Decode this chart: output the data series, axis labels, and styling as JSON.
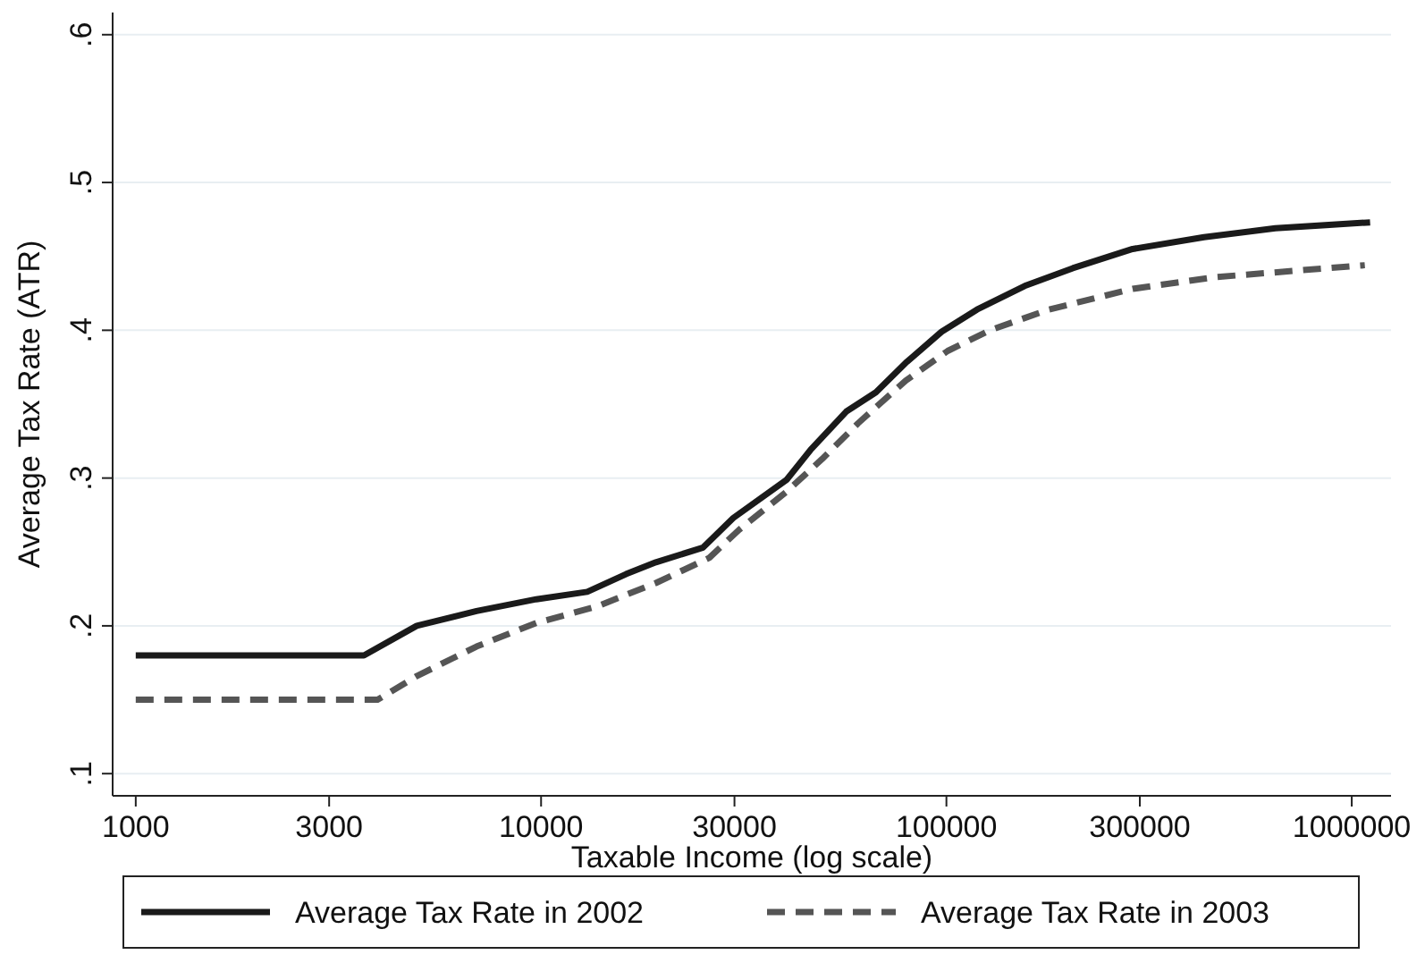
{
  "chart_data": {
    "type": "line",
    "xlabel": "Taxable Income (log scale)",
    "ylabel": "Average Tax Rate (ATR)",
    "log": "x",
    "xlim": [
      877,
      1250000
    ],
    "ylim": [
      0.085,
      0.615
    ],
    "xticks": [
      1000,
      3000,
      10000,
      30000,
      100000,
      300000,
      1000000
    ],
    "yticks": [
      {
        "value": 0.1,
        "label": ".1"
      },
      {
        "value": 0.2,
        "label": ".2"
      },
      {
        "value": 0.3,
        "label": ".3"
      },
      {
        "value": 0.4,
        "label": ".4"
      },
      {
        "value": 0.5,
        "label": ".5"
      },
      {
        "value": 0.6,
        "label": ".6"
      }
    ],
    "grid": "y",
    "legend": "bottom",
    "series": [
      {
        "name": "Average Tax Rate in 2002",
        "color": "#1a1a1a",
        "line_style": "solid",
        "x": [
          1000,
          3656,
          4935,
          6930,
          9730,
          13000,
          16200,
          19200,
          25100,
          29800,
          40400,
          46200,
          56600,
          67000,
          79400,
          97300,
          119000,
          156000,
          205000,
          288000,
          432000,
          648000,
          1110000
        ],
        "values": [
          0.18,
          0.18,
          0.2,
          0.21,
          0.218,
          0.223,
          0.235,
          0.243,
          0.253,
          0.273,
          0.299,
          0.319,
          0.345,
          0.358,
          0.378,
          0.399,
          0.414,
          0.43,
          0.442,
          0.455,
          0.463,
          0.469,
          0.473
        ]
      },
      {
        "name": "Average Tax Rate in 2003",
        "color": "#555555",
        "line_style": "dashed",
        "x": [
          1000,
          3950,
          4935,
          6930,
          9730,
          13700,
          19200,
          26000,
          30800,
          40400,
          49400,
          60500,
          79400,
          100700,
          128000,
          179000,
          288000,
          462000,
          1077000
        ],
        "values": [
          0.15,
          0.15,
          0.166,
          0.186,
          0.202,
          0.213,
          0.229,
          0.246,
          0.265,
          0.291,
          0.313,
          0.337,
          0.366,
          0.386,
          0.4,
          0.414,
          0.428,
          0.436,
          0.444
        ]
      }
    ]
  }
}
